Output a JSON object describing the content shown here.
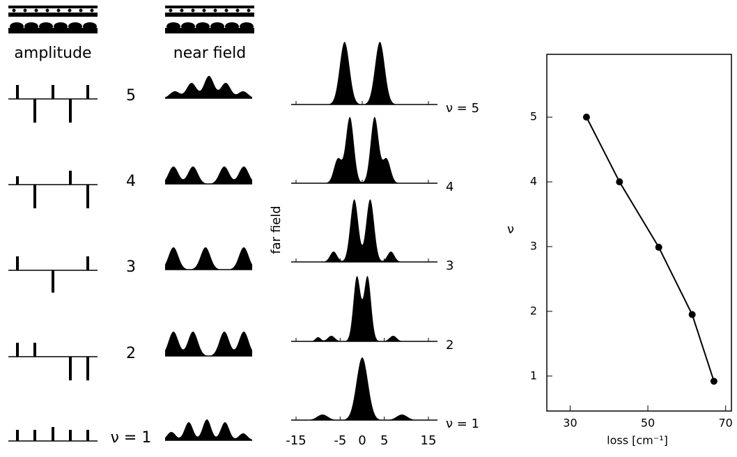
{
  "panels": {
    "amplitude_label": "amplitude",
    "near_field_label": "near field",
    "far_field_label": "far field",
    "mode_labels": [
      "5",
      "4",
      "3",
      "2",
      "ν = 1"
    ],
    "far_mode_labels": [
      "ν = 5",
      "4",
      "3",
      "2",
      "ν = 1"
    ],
    "far_xticks": [
      -15,
      -5,
      0,
      5,
      15
    ]
  },
  "chart_data": {
    "type": "line",
    "x": [
      34.2,
      42.7,
      52.8,
      61.4,
      67
    ],
    "values": [
      5,
      4,
      2.99,
      1.95,
      0.92
    ],
    "color": "#000000",
    "xlabel": "loss [cm⁻¹]",
    "ylabel": "ν",
    "xlim": [
      24,
      71.5
    ],
    "ylim": [
      0.46,
      5.97
    ],
    "xticks": [
      30,
      50,
      70
    ],
    "yticks": [
      1,
      2,
      3,
      4,
      5
    ]
  }
}
